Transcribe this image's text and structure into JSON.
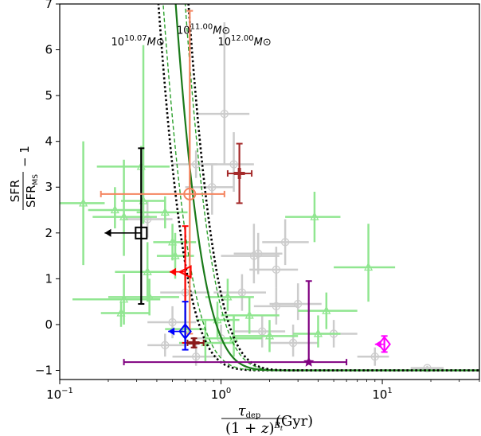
{
  "chart_data": {
    "type": "scatter",
    "title": "",
    "xscale": "log",
    "xlim": [
      0.1,
      40
    ],
    "ylim": [
      -1.2,
      7
    ],
    "xticks": [
      0.1,
      1,
      10
    ],
    "xtick_labels": [
      "10^-1",
      "10^0",
      "10^1"
    ],
    "yticks": [
      -1,
      0,
      1,
      2,
      3,
      4,
      5,
      6,
      7
    ],
    "xlabel": {
      "numerator": "τ_dep",
      "denominator": "(1 + z)^β_t",
      "unit": "(Gyr)"
    },
    "ylabel": {
      "numerator": "SFR",
      "denominator": "SFR_MS",
      "suffix": "− 1"
    },
    "annotations": [
      {
        "base": "10",
        "exp": "10.07",
        "unit": "M⊙",
        "x": 0.305,
        "y": 6.1
      },
      {
        "base": "10",
        "exp": "11.00",
        "unit": "M⊙",
        "x": 0.78,
        "y": 6.35
      },
      {
        "base": "10",
        "exp": "12.00",
        "unit": "M⊙",
        "x": 1.4,
        "y": 6.1
      }
    ],
    "curves": [
      {
        "mass": "10^10.07",
        "style": "dotted",
        "color": "#000000",
        "t0": 0.43
      },
      {
        "mass": "10^10.07",
        "style": "dashed",
        "color": "#2ca02c",
        "t0": 0.46
      },
      {
        "mass": "10^11.00",
        "style": "solid",
        "color": "#1a7a1a",
        "t0": 0.55
      },
      {
        "mass": "10^12.00",
        "style": "dashed",
        "color": "#2ca02c",
        "t0": 0.63
      },
      {
        "mass": "10^12.00",
        "style": "dotted",
        "color": "#000000",
        "t0": 0.66
      }
    ],
    "series": [
      {
        "color": "#90e690",
        "points": [
          {
            "x": 0.14,
            "y": 2.65,
            "xl": 0.1,
            "xh": 0.19,
            "yl": 1.3,
            "yh": 4.0
          },
          {
            "x": 0.32,
            "y": 3.45,
            "xl": 0.17,
            "xh": 0.48,
            "yl": 2.9,
            "yh": 3.9
          },
          {
            "x": 0.33,
            "y": 2.7,
            "xl": 0.24,
            "xh": 0.45,
            "yl": 2.2,
            "yh": 6.1
          },
          {
            "x": 0.22,
            "y": 2.5,
            "xl": 0.15,
            "xh": 0.32,
            "yl": 2.1,
            "yh": 3.0
          },
          {
            "x": 0.25,
            "y": 2.35,
            "xl": 0.16,
            "xh": 0.4,
            "yl": 1.5,
            "yh": 3.6
          },
          {
            "x": 0.35,
            "y": 1.15,
            "xl": 0.22,
            "xh": 0.5,
            "yl": 0.5,
            "yh": 1.8
          },
          {
            "x": 0.36,
            "y": 0.6,
            "xl": 0.2,
            "xh": 0.55,
            "yl": 0.2,
            "yh": 1.0
          },
          {
            "x": 0.25,
            "y": 0.55,
            "xl": 0.12,
            "xh": 0.42,
            "yl": 0.0,
            "yh": 1.1
          },
          {
            "x": 0.24,
            "y": 0.25,
            "xl": 0.18,
            "xh": 0.36,
            "yl": -0.05,
            "yh": 0.5
          },
          {
            "x": 0.45,
            "y": 2.45,
            "xl": 0.3,
            "xh": 0.62,
            "yl": 2.1,
            "yh": 2.8
          },
          {
            "x": 0.5,
            "y": 1.8,
            "xl": 0.38,
            "xh": 0.7,
            "yl": 1.4,
            "yh": 2.2
          },
          {
            "x": 0.52,
            "y": 1.5,
            "xl": 0.4,
            "xh": 0.68,
            "yl": 1.0,
            "yh": 2.0
          },
          {
            "x": 0.6,
            "y": -0.1,
            "xl": 0.45,
            "xh": 0.8,
            "yl": -0.5,
            "yh": 0.3
          },
          {
            "x": 0.8,
            "y": -0.4,
            "xl": 0.55,
            "xh": 1.2,
            "yl": -0.8,
            "yh": 0.1
          },
          {
            "x": 0.95,
            "y": 0.1,
            "xl": 0.7,
            "xh": 1.3,
            "yl": -0.3,
            "yh": 0.5
          },
          {
            "x": 1.2,
            "y": -0.3,
            "xl": 0.8,
            "xh": 1.8,
            "yl": -0.7,
            "yh": 0.2
          },
          {
            "x": 1.5,
            "y": 0.2,
            "xl": 1.0,
            "xh": 2.3,
            "yl": -0.2,
            "yh": 0.6
          },
          {
            "x": 2.0,
            "y": -0.25,
            "xl": 1.2,
            "xh": 3.0,
            "yl": -0.6,
            "yh": 0.1
          },
          {
            "x": 1.1,
            "y": 0.6,
            "xl": 0.8,
            "xh": 1.6,
            "yl": 0.3,
            "yh": 1.0
          },
          {
            "x": 3.8,
            "y": 2.35,
            "xl": 2.5,
            "xh": 5.5,
            "yl": 1.8,
            "yh": 2.9
          },
          {
            "x": 4.5,
            "y": 0.3,
            "xl": 3.0,
            "xh": 7.0,
            "yl": -0.1,
            "yh": 0.7
          },
          {
            "x": 8.2,
            "y": 1.25,
            "xl": 5.0,
            "xh": 12.0,
            "yl": 0.5,
            "yh": 2.2
          },
          {
            "x": 4.0,
            "y": -0.2,
            "xl": 2.8,
            "xh": 5.5,
            "yl": -0.5,
            "yh": 0.2
          }
        ]
      },
      {
        "color": "#cccccc",
        "points": [
          {
            "x": 1.05,
            "y": 4.6,
            "xl": 0.7,
            "xh": 1.5,
            "yl": 3.5,
            "yh": 6.6
          },
          {
            "x": 1.2,
            "y": 3.5,
            "xl": 0.8,
            "xh": 1.6,
            "yl": 2.9,
            "yh": 4.2
          },
          {
            "x": 1.6,
            "y": 1.5,
            "xl": 1.0,
            "xh": 2.3,
            "yl": 0.9,
            "yh": 2.2
          },
          {
            "x": 1.7,
            "y": 1.55,
            "xl": 1.2,
            "xh": 2.4,
            "yl": 1.1,
            "yh": 2.0
          },
          {
            "x": 2.2,
            "y": 1.2,
            "xl": 1.5,
            "xh": 3.0,
            "yl": 0.8,
            "yh": 1.7
          },
          {
            "x": 2.5,
            "y": 1.8,
            "xl": 1.8,
            "xh": 3.5,
            "yl": 1.3,
            "yh": 2.3
          },
          {
            "x": 2.2,
            "y": 0.4,
            "xl": 1.6,
            "xh": 3.0,
            "yl": 0.0,
            "yh": 0.8
          },
          {
            "x": 3.0,
            "y": 0.45,
            "xl": 2.0,
            "xh": 4.2,
            "yl": 0.1,
            "yh": 0.9
          },
          {
            "x": 1.35,
            "y": 0.7,
            "xl": 0.9,
            "xh": 1.9,
            "yl": 0.3,
            "yh": 1.1
          },
          {
            "x": 1.0,
            "y": -0.3,
            "xl": 0.7,
            "xh": 1.4,
            "yl": -0.7,
            "yh": 0.0
          },
          {
            "x": 1.8,
            "y": -0.15,
            "xl": 1.2,
            "xh": 2.5,
            "yl": -0.5,
            "yh": 0.2
          },
          {
            "x": 5.0,
            "y": -0.2,
            "xl": 3.5,
            "xh": 7.0,
            "yl": -0.5,
            "yh": 0.1
          },
          {
            "x": 9.0,
            "y": -0.7,
            "xl": 7.0,
            "xh": 11.0,
            "yl": -0.9,
            "yh": -0.5
          },
          {
            "x": 19.0,
            "y": -0.95,
            "xl": 15.0,
            "xh": 24.0,
            "yl": -1.0,
            "yh": -0.9
          },
          {
            "x": 0.45,
            "y": -0.45,
            "xl": 0.35,
            "xh": 0.6,
            "yl": -0.7,
            "yh": -0.2
          },
          {
            "x": 0.35,
            "y": 2.3,
            "xl": 0.25,
            "xh": 0.5,
            "yl": 1.9,
            "yh": 2.7
          },
          {
            "x": 0.7,
            "y": 3.5,
            "xl": 0.5,
            "xh": 0.95,
            "yl": 3.2,
            "yh": 3.8
          },
          {
            "x": 0.88,
            "y": 3.0,
            "xl": 0.6,
            "xh": 1.2,
            "yl": 2.4,
            "yh": 3.5
          },
          {
            "x": 0.6,
            "y": 0.7,
            "xl": 0.42,
            "xh": 0.85,
            "yl": 0.3,
            "yh": 1.1
          },
          {
            "x": 0.5,
            "y": 0.05,
            "xl": 0.35,
            "xh": 0.7,
            "yl": -0.3,
            "yh": 0.4
          },
          {
            "x": 0.7,
            "y": -0.7,
            "xl": 0.5,
            "xh": 0.95,
            "yl": -0.9,
            "yh": -0.4
          },
          {
            "x": 2.8,
            "y": -0.4,
            "xl": 2.0,
            "xh": 4.0,
            "yl": -0.7,
            "yh": 0.0
          }
        ]
      }
    ],
    "highlight": [
      {
        "marker": "square",
        "color": "#000000",
        "x": 0.32,
        "y": 2.0,
        "yl": 0.45,
        "yh": 3.85,
        "upper_limit_x": 0.19
      },
      {
        "marker": "circle",
        "color": "#f4845f",
        "x": 0.64,
        "y": 2.85,
        "xl": 0.18,
        "xh": 1.05,
        "yl": -0.2,
        "yh": 6.85
      },
      {
        "marker": "triangle-left",
        "color": "#ff0000",
        "x": 0.6,
        "y": 1.15,
        "yl": -0.4,
        "yh": 2.15,
        "upper_limit_x": 0.48
      },
      {
        "marker": "plus",
        "color": "#a52a2a",
        "x": 1.3,
        "y": 3.3,
        "xl": 1.1,
        "xh": 1.55,
        "yl": 2.65,
        "yh": 3.95
      },
      {
        "marker": "diamond",
        "color": "#0000ff",
        "x": 0.6,
        "y": -0.15,
        "yl": -0.55,
        "yh": 0.5,
        "upper_limit_x": 0.47
      },
      {
        "marker": "plus",
        "color": "#8b1a1a",
        "x": 0.68,
        "y": -0.4,
        "xl": 0.62,
        "xh": 0.78,
        "yl": -0.5,
        "yh": -0.3
      },
      {
        "marker": "star",
        "color": "#800080",
        "x": 3.5,
        "y": -0.82,
        "xl": 0.25,
        "xh": 6.0,
        "yl": -0.82,
        "yh": 0.95
      },
      {
        "marker": "diamond",
        "color": "#ff00ff",
        "x": 10.3,
        "y": -0.43,
        "yl": -0.6,
        "yh": -0.25,
        "upper_limit_x": 9.0
      }
    ]
  }
}
